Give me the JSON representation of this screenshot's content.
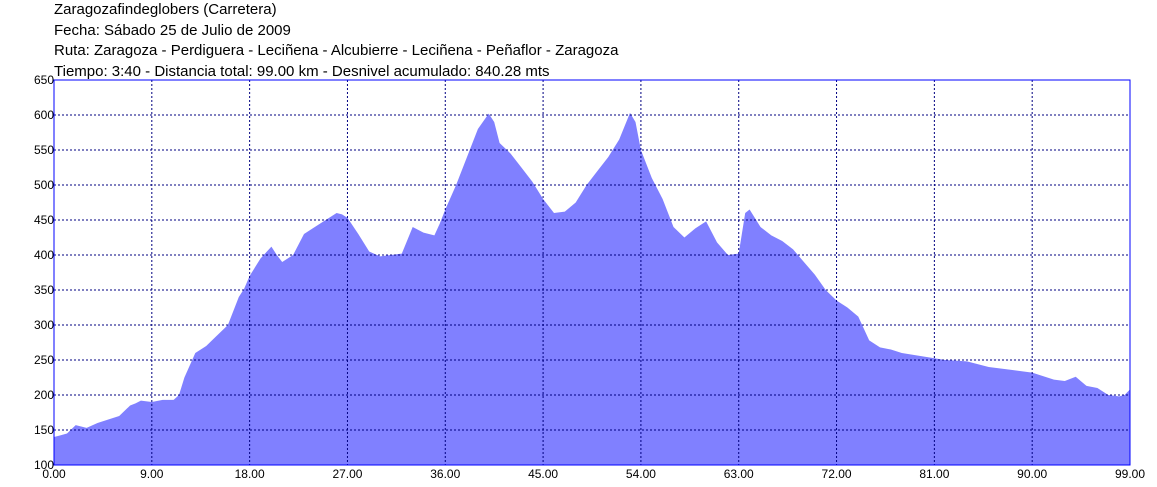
{
  "header": {
    "line1": "Zaragozafindeglobers (Carretera)",
    "line2": "Fecha: Sábado 25 de Julio de 2009",
    "line3": "Ruta: Zaragoza - Perdiguera - Leciñena - Alcubierre - Leciñena - Peñaflor - Zaragoza",
    "line4": "Tiempo: 3:40 - Distancia total: 99.00 km - Desnivel acumulado: 840.28 mts"
  },
  "colors": {
    "fill": "#8080ff",
    "outline": "#0000ff",
    "grid": "#000080"
  },
  "chart_data": {
    "type": "area",
    "title": "Zaragozafindeglobers (Carretera)",
    "xlabel": "",
    "ylabel": "",
    "xlim": [
      0,
      99
    ],
    "ylim": [
      100,
      650
    ],
    "grid": true,
    "x_ticks": [
      "0.00",
      "9.00",
      "18.00",
      "27.00",
      "36.00",
      "45.00",
      "54.00",
      "63.00",
      "72.00",
      "81.00",
      "90.00",
      "99.00"
    ],
    "y_ticks": [
      "100",
      "150",
      "200",
      "250",
      "300",
      "350",
      "400",
      "450",
      "500",
      "550",
      "600",
      "650"
    ],
    "series": [
      {
        "x": [
          0,
          0.5,
          1.2,
          2,
          3,
          4,
          5,
          6,
          7,
          7.5,
          8,
          9,
          10,
          11,
          11.5,
          12,
          13,
          14,
          15,
          16,
          17,
          17.5,
          18,
          19,
          20,
          20.5,
          21,
          22,
          23,
          24,
          25,
          26,
          26.5,
          27,
          28,
          29,
          30,
          31,
          32,
          33,
          34,
          35,
          35.5,
          36,
          37,
          38,
          39,
          40,
          40.5,
          41,
          42,
          43,
          44,
          45,
          46,
          47,
          48,
          49,
          50,
          51,
          52,
          53,
          53.5,
          54,
          55,
          56,
          57,
          58,
          59,
          60,
          61,
          62,
          63,
          63.6,
          64,
          65,
          66,
          67,
          68,
          69,
          70,
          71,
          72,
          73,
          74,
          75,
          76,
          77,
          78,
          80,
          82,
          84,
          86,
          88,
          90,
          92,
          93,
          94,
          95,
          96,
          97,
          98,
          98.5,
          99
        ],
        "y": [
          140,
          142,
          145,
          157,
          153,
          160,
          165,
          170,
          185,
          188,
          192,
          190,
          193,
          193,
          200,
          225,
          260,
          270,
          285,
          300,
          340,
          352,
          370,
          395,
          412,
          400,
          390,
          400,
          430,
          440,
          450,
          460,
          458,
          453,
          430,
          405,
          398,
          400,
          402,
          440,
          432,
          428,
          445,
          465,
          500,
          540,
          580,
          602,
          590,
          560,
          545,
          525,
          505,
          480,
          460,
          462,
          475,
          500,
          520,
          540,
          565,
          603,
          590,
          550,
          510,
          480,
          440,
          425,
          438,
          448,
          418,
          400,
          402,
          460,
          465,
          440,
          428,
          420,
          408,
          390,
          372,
          350,
          335,
          325,
          312,
          278,
          268,
          265,
          260,
          255,
          250,
          248,
          240,
          236,
          232,
          222,
          220,
          226,
          213,
          210,
          200,
          198,
          200,
          208
        ]
      }
    ]
  }
}
